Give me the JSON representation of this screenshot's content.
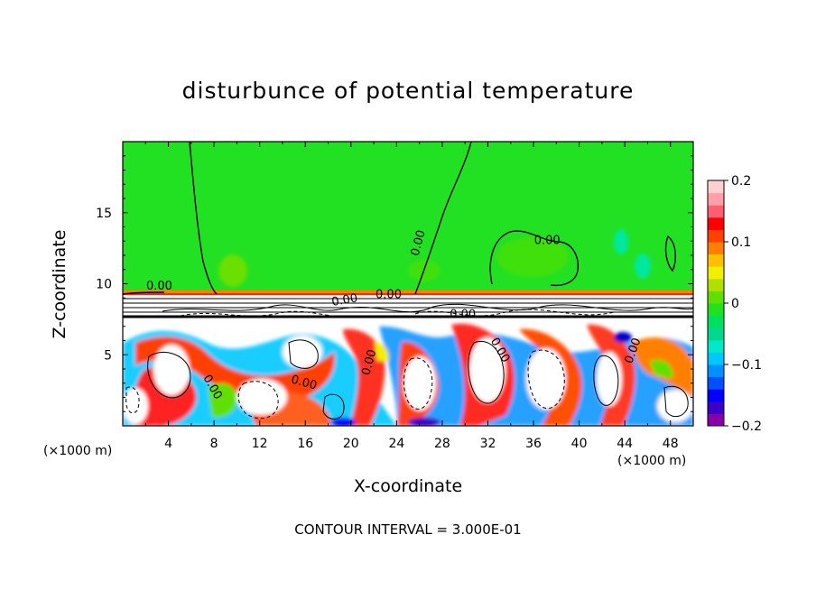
{
  "chart_data": {
    "type": "heatmap",
    "title": "disturbunce of potential temperature",
    "xlabel": "X-coordinate",
    "ylabel": "Z-coordinate",
    "x_unit": "(×1000 m)",
    "x_unit_right": "(×1000 m)",
    "contour_interval_text": "CONTOUR INTERVAL = 3.000E-01",
    "xlim": [
      0,
      50
    ],
    "ylim": [
      0,
      20
    ],
    "x_ticks": [
      "4",
      "8",
      "12",
      "16",
      "20",
      "24",
      "28",
      "32",
      "36",
      "40",
      "44",
      "48"
    ],
    "y_ticks": [
      "5",
      "10",
      "15"
    ],
    "colorbar": {
      "range": [
        -0.2,
        0.2
      ],
      "tick_labels": [
        "0.2",
        "0.1",
        "0",
        "−0.1",
        "−0.2"
      ],
      "colors": [
        "#8a00a8",
        "#3a00c8",
        "#0000ff",
        "#0050ff",
        "#0090ff",
        "#00c8ff",
        "#00e8c8",
        "#00d890",
        "#00e060",
        "#20e020",
        "#60e000",
        "#b0e000",
        "#f0f000",
        "#ffc000",
        "#ff8000",
        "#ff4000",
        "#ff0000",
        "#ff6070",
        "#ffa0a8",
        "#ffd0d0"
      ]
    },
    "contour_labels": [
      "0.00",
      "0.00",
      "0.00",
      "0.00",
      "0.00",
      "0.00",
      "0.00",
      "0.00",
      "0.00",
      "0.00",
      "0.00"
    ],
    "upper_region_value": 0.0,
    "inversion_height": 9.5
  }
}
